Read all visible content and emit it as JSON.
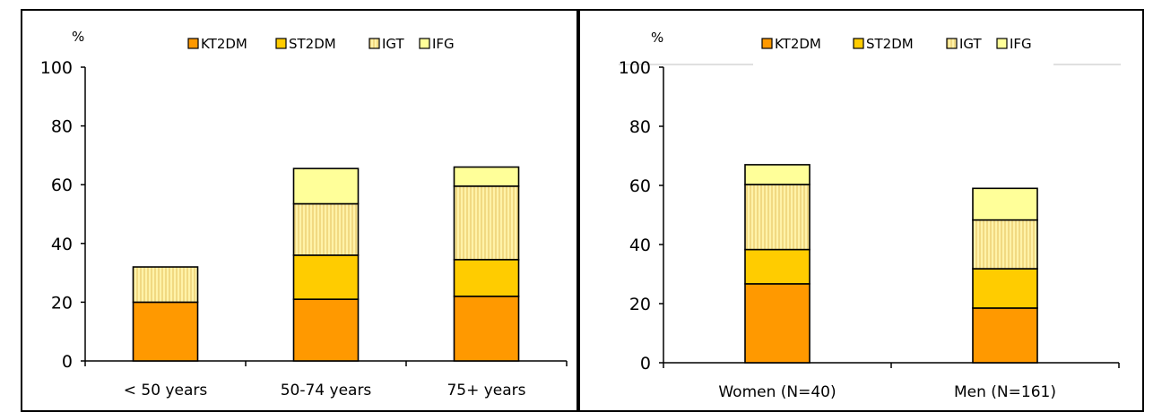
{
  "legend_labels": [
    "KT2DM",
    "ST2DM",
    "IGT",
    "IFG"
  ],
  "colors": {
    "KT2DM": "#ff9900",
    "ST2DM": "#ffcc00",
    "IGT": "#fff2a8",
    "IGT_stripe": "#e8c96a",
    "IFG": "#ffff99"
  },
  "chart_data": [
    {
      "type": "bar",
      "stacked": true,
      "ylabel": "%",
      "ylim": [
        0,
        100
      ],
      "yticks": [
        0,
        20,
        40,
        60,
        80,
        100
      ],
      "categories": [
        "< 50 years",
        "50-74 years",
        "75+ years"
      ],
      "series": [
        {
          "name": "KT2DM",
          "values": [
            20,
            21,
            22
          ]
        },
        {
          "name": "ST2DM",
          "values": [
            0,
            15,
            12.5
          ]
        },
        {
          "name": "IGT",
          "values": [
            12,
            17.5,
            25
          ]
        },
        {
          "name": "IFG",
          "values": [
            0,
            12,
            6.5
          ]
        }
      ],
      "legend": "top"
    },
    {
      "type": "bar",
      "stacked": true,
      "ylabel": "%",
      "ylim": [
        0,
        100
      ],
      "yticks": [
        0,
        20,
        40,
        60,
        80,
        100
      ],
      "categories": [
        "Women (N=40)",
        "Men (N=161)"
      ],
      "series": [
        {
          "name": "KT2DM",
          "values": [
            26.7,
            18.5
          ]
        },
        {
          "name": "ST2DM",
          "values": [
            11.6,
            13.3
          ]
        },
        {
          "name": "IGT",
          "values": [
            22,
            16.5
          ]
        },
        {
          "name": "IFG",
          "values": [
            6.7,
            10.7
          ]
        }
      ],
      "legend": "top"
    }
  ]
}
